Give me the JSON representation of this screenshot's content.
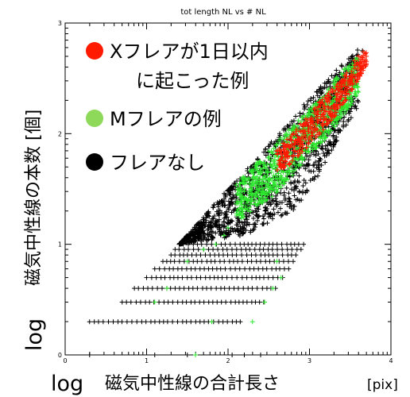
{
  "chart_data": {
    "type": "scatter",
    "title": "tot length NL vs # NL",
    "xlabel": {
      "log": "log",
      "main": "磁気中性線の合計長さ",
      "unit": "[pix]"
    },
    "ylabel": {
      "log": "log",
      "main": "磁気中性線の本数 [個]"
    },
    "xlim": [
      0,
      4
    ],
    "ylim": [
      0,
      3
    ],
    "xticks": [
      {
        "value": 0,
        "label": "0"
      },
      {
        "value": 1,
        "label": "1"
      },
      {
        "value": 2,
        "label": "2"
      },
      {
        "value": 3,
        "label": "3"
      },
      {
        "value": 4,
        "label": "4"
      }
    ],
    "yticks": [
      {
        "value": 0,
        "label": "0"
      },
      {
        "value": 1,
        "label": "1"
      },
      {
        "value": 2,
        "label": "2"
      },
      {
        "value": 3,
        "label": "3"
      }
    ],
    "legend": {
      "placement": "top-left",
      "entries": [
        {
          "label_lines": [
            "Xフレアが1日以内",
            "に起こった例"
          ],
          "color": "#ff1a00"
        },
        {
          "label_lines": [
            "Mフレアの例"
          ],
          "color": "#8ed95a"
        },
        {
          "label_lines": [
            "フレアなし"
          ],
          "color": "#000000"
        }
      ]
    },
    "marker": "+",
    "series": [
      {
        "key": "none",
        "color": "#000000",
        "band_rows": [
          {
            "y": 0.3,
            "x_from": 0.3,
            "x_to": 2.2
          },
          {
            "y": 0.477,
            "x_from": 0.7,
            "x_to": 2.45
          },
          {
            "y": 0.602,
            "x_from": 0.85,
            "x_to": 2.6
          },
          {
            "y": 0.699,
            "x_from": 1.0,
            "x_to": 2.7
          },
          {
            "y": 0.778,
            "x_from": 1.1,
            "x_to": 2.75
          },
          {
            "y": 0.845,
            "x_from": 1.2,
            "x_to": 2.8
          },
          {
            "y": 0.903,
            "x_from": 1.3,
            "x_to": 2.85
          },
          {
            "y": 0.954,
            "x_from": 1.35,
            "x_to": 2.9
          },
          {
            "y": 1.0,
            "x_from": 1.4,
            "x_to": 2.95
          }
        ],
        "band_upper": [
          [
            1.4,
            1.0
          ],
          [
            2.0,
            1.5
          ],
          [
            2.5,
            1.9
          ],
          [
            2.9,
            2.25
          ],
          [
            3.3,
            2.55
          ],
          [
            3.6,
            2.78
          ]
        ],
        "band_lower": [
          [
            1.4,
            1.0
          ],
          [
            2.2,
            1.08
          ],
          [
            2.8,
            1.3
          ],
          [
            3.1,
            1.6
          ],
          [
            3.35,
            1.95
          ],
          [
            3.6,
            2.25
          ]
        ],
        "points": [
          [
            0.3,
            0.0
          ],
          [
            1.1,
            0.0
          ],
          [
            1.5,
            0.0
          ],
          [
            2.05,
            0.0
          ],
          [
            2.2,
            0.0
          ],
          [
            2.4,
            0.0
          ],
          [
            3.65,
            2.75
          ],
          [
            3.55,
            2.62
          ],
          [
            3.4,
            2.3
          ],
          [
            3.58,
            2.45
          ],
          [
            3.5,
            2.2
          ]
        ]
      },
      {
        "key": "m",
        "color": "#2ee82e",
        "band_upper": [
          [
            2.1,
            1.55
          ],
          [
            2.5,
            1.85
          ],
          [
            2.9,
            2.15
          ],
          [
            3.3,
            2.48
          ],
          [
            3.6,
            2.72
          ]
        ],
        "band_lower": [
          [
            2.1,
            1.2
          ],
          [
            2.5,
            1.4
          ],
          [
            2.9,
            1.7
          ],
          [
            3.3,
            2.05
          ],
          [
            3.6,
            2.35
          ]
        ],
        "points": [
          [
            1.1,
            0.477
          ],
          [
            1.25,
            0.602
          ],
          [
            1.5,
            0.845
          ],
          [
            1.7,
            0.954
          ],
          [
            1.85,
            1.0
          ],
          [
            1.95,
            1.08
          ],
          [
            2.0,
            1.15
          ],
          [
            1.8,
            0.3
          ],
          [
            2.3,
            0.3
          ],
          [
            2.45,
            0.477
          ],
          [
            2.55,
            0.602
          ],
          [
            2.65,
            0.699
          ],
          [
            2.6,
            0.845
          ],
          [
            1.6,
            0.0
          ]
        ]
      },
      {
        "key": "x",
        "color": "#ff1a00",
        "band_upper": [
          [
            2.6,
            1.85
          ],
          [
            2.9,
            2.1
          ],
          [
            3.2,
            2.35
          ],
          [
            3.45,
            2.55
          ],
          [
            3.7,
            2.75
          ]
        ],
        "band_lower": [
          [
            2.6,
            1.6
          ],
          [
            2.9,
            1.82
          ],
          [
            3.2,
            2.05
          ],
          [
            3.45,
            2.3
          ],
          [
            3.7,
            2.62
          ]
        ],
        "points": [
          [
            3.66,
            2.74
          ],
          [
            3.6,
            2.7
          ],
          [
            3.55,
            2.66
          ],
          [
            3.2,
            2.2
          ],
          [
            2.95,
            2.0
          ],
          [
            2.75,
            1.72
          ]
        ]
      }
    ]
  }
}
